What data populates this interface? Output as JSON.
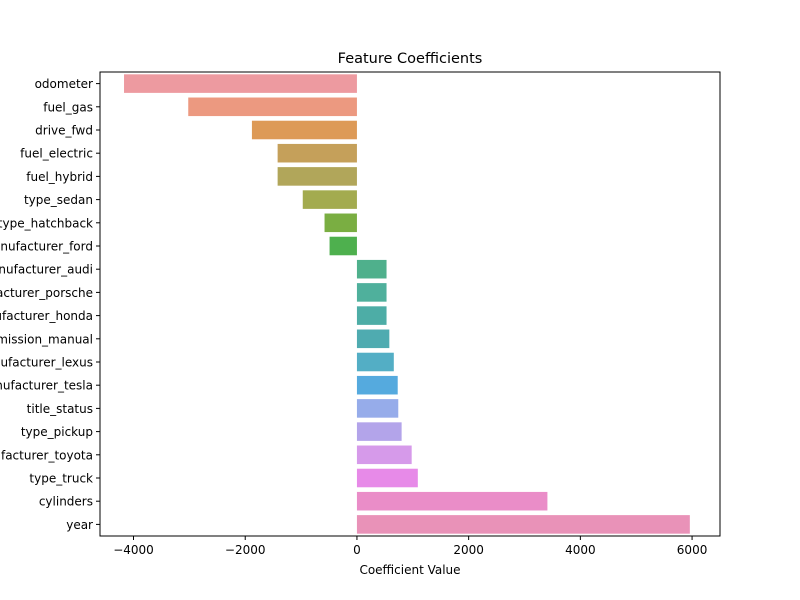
{
  "chart_data": {
    "type": "bar",
    "orientation": "horizontal",
    "title": "Feature Coefficients",
    "xlabel": "Coefficient Value",
    "ylabel": "",
    "xlim": [
      -4600,
      6500
    ],
    "xticks": [
      -4000,
      -2000,
      0,
      2000,
      4000,
      6000
    ],
    "xtick_labels": [
      "−4000",
      "−2000",
      "0",
      "2000",
      "4000",
      "6000"
    ],
    "grid": false,
    "legend": "none",
    "categories": [
      "odometer",
      "fuel_gas",
      "drive_fwd",
      "fuel_electric",
      "fuel_hybrid",
      "type_sedan",
      "type_hatchback",
      "manufacturer_ford",
      "manufacturer_audi",
      "manufacturer_porsche",
      "manufacturer_honda",
      "transmission_manual",
      "manufacturer_lexus",
      "manufacturer_tesla",
      "title_status",
      "type_pickup",
      "manufacturer_toyota",
      "type_truck",
      "cylinders",
      "year"
    ],
    "values": [
      -4170,
      -3020,
      -1880,
      -1420,
      -1420,
      -970,
      -580,
      -490,
      530,
      530,
      530,
      580,
      660,
      730,
      740,
      800,
      980,
      1090,
      3410,
      5960
    ],
    "colors": [
      "#ed9aa0",
      "#ec9980",
      "#dd9a57",
      "#c5a05a",
      "#b1a65a",
      "#a3ab4f",
      "#7aae42",
      "#4eb04e",
      "#4fb08c",
      "#4fb09c",
      "#4dada6",
      "#4fabb0",
      "#53aec5",
      "#55aade",
      "#96acea",
      "#b3a4ea",
      "#d69aea",
      "#e78ae8",
      "#ea8dc8",
      "#e992b8"
    ]
  }
}
